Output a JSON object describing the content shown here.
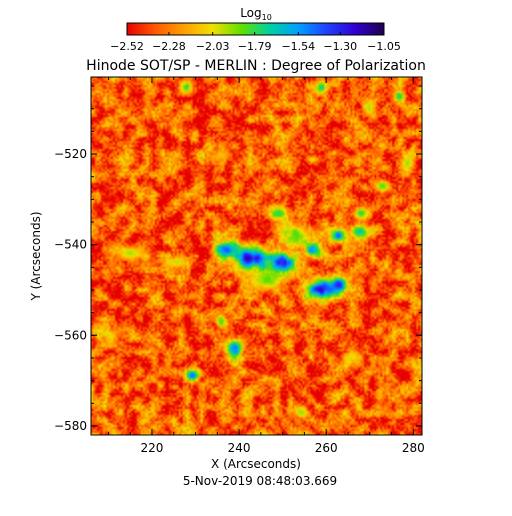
{
  "chart_data": {
    "type": "heatmap",
    "title": "Hinode SOT/SP - MERLIN : Degree of Polarization",
    "colorbar": {
      "label": "Log",
      "label_subscript": "10",
      "ticks": [
        "-2.52",
        "-2.28",
        "-2.03",
        "-1.79",
        "-1.54",
        "-1.30",
        "-1.05"
      ],
      "range": [
        -2.52,
        -1.05
      ],
      "colors": [
        "#e60000",
        "#ff5a00",
        "#ffa000",
        "#f0e000",
        "#60e000",
        "#00d0a0",
        "#00a0ff",
        "#2040ff",
        "#3000d0",
        "#200050"
      ]
    },
    "xlabel": "X (Arcseconds)",
    "ylabel": "Y (Arcseconds)",
    "xticks": [
      "220",
      "240",
      "260",
      "280"
    ],
    "yticks": [
      "-520",
      "-540",
      "-560",
      "-580"
    ],
    "xlim": [
      206,
      282
    ],
    "ylim": [
      -582,
      -503
    ],
    "background_value": -2.35,
    "features": [
      {
        "x": 243,
        "y": -543,
        "sx": 2.8,
        "sy": 1.8,
        "value": -1.1
      },
      {
        "x": 250,
        "y": -544,
        "sx": 2.2,
        "sy": 1.5,
        "value": -1.2
      },
      {
        "x": 237,
        "y": -541,
        "sx": 1.8,
        "sy": 1.3,
        "value": -1.35
      },
      {
        "x": 259,
        "y": -550,
        "sx": 2.5,
        "sy": 1.5,
        "value": -1.2
      },
      {
        "x": 263,
        "y": -549,
        "sx": 1.6,
        "sy": 1.3,
        "value": -1.3
      },
      {
        "x": 257,
        "y": -541,
        "sx": 1.4,
        "sy": 1.1,
        "value": -1.35
      },
      {
        "x": 263,
        "y": -538,
        "sx": 1.3,
        "sy": 1.0,
        "value": -1.4
      },
      {
        "x": 268,
        "y": -537,
        "sx": 1.6,
        "sy": 1.0,
        "value": -1.6
      },
      {
        "x": 249,
        "y": -533,
        "sx": 1.5,
        "sy": 1.0,
        "value": -1.7
      },
      {
        "x": 253,
        "y": -538,
        "sx": 2.5,
        "sy": 1.6,
        "value": -1.75
      },
      {
        "x": 246,
        "y": -548,
        "sx": 3.0,
        "sy": 1.5,
        "value": -1.85
      },
      {
        "x": 239,
        "y": -563,
        "sx": 1.2,
        "sy": 1.3,
        "value": -1.4
      },
      {
        "x": 229,
        "y": -569,
        "sx": 1.1,
        "sy": 0.8,
        "value": -1.4
      },
      {
        "x": 236,
        "y": -557,
        "sx": 1.0,
        "sy": 1.0,
        "value": -1.7
      },
      {
        "x": 273,
        "y": -527,
        "sx": 1.2,
        "sy": 1.0,
        "value": -1.75
      },
      {
        "x": 268,
        "y": -533,
        "sx": 1.3,
        "sy": 1.0,
        "value": -1.8
      },
      {
        "x": 215,
        "y": -542,
        "sx": 3.0,
        "sy": 1.0,
        "value": -1.95
      },
      {
        "x": 225,
        "y": -544,
        "sx": 2.0,
        "sy": 0.9,
        "value": -1.95
      },
      {
        "x": 228,
        "y": -505,
        "sx": 1.0,
        "sy": 1.0,
        "value": -1.75
      },
      {
        "x": 259,
        "y": -505,
        "sx": 1.0,
        "sy": 1.0,
        "value": -1.7
      },
      {
        "x": 277,
        "y": -507,
        "sx": 1.0,
        "sy": 1.0,
        "value": -1.75
      },
      {
        "x": 270,
        "y": -510,
        "sx": 1.0,
        "sy": 1.2,
        "value": -1.9
      },
      {
        "x": 254,
        "y": -577,
        "sx": 1.2,
        "sy": 1.0,
        "value": -1.9
      },
      {
        "x": 279,
        "y": -522,
        "sx": 1.0,
        "sy": 1.2,
        "value": -1.85
      },
      {
        "x": 210,
        "y": -560,
        "sx": 1.5,
        "sy": 1.0,
        "value": -2.0
      },
      {
        "x": 236,
        "y": -520,
        "sx": 1.5,
        "sy": 1.0,
        "value": -2.05
      },
      {
        "x": 266,
        "y": -565,
        "sx": 1.5,
        "sy": 1.2,
        "value": -2.0
      }
    ]
  },
  "footer": {
    "timestamp": "5-Nov-2019 08:48:03.669"
  }
}
